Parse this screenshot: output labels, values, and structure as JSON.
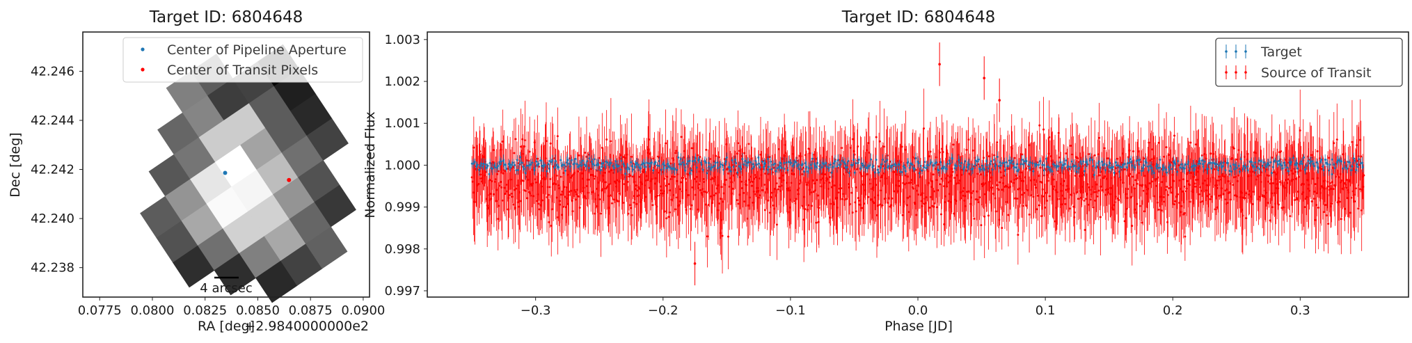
{
  "chart_data": [
    {
      "type": "heatmap",
      "title": "Target ID: 6804648",
      "xlabel": "RA [deg]",
      "ylabel": "Dec [deg]",
      "x_offset_text": "+2.9840000000e2",
      "xlim": [
        0.0767,
        0.0903
      ],
      "ylim": [
        42.2368,
        42.2476
      ],
      "xticks": [
        "0.0775",
        "0.0800",
        "0.0825",
        "0.0850",
        "0.0875",
        "0.0900"
      ],
      "xtick_values": [
        0.0775,
        0.08,
        0.0825,
        0.085,
        0.0875,
        0.09
      ],
      "yticks": [
        "42.246",
        "42.244",
        "42.242",
        "42.240",
        "42.238"
      ],
      "ytick_values": [
        42.246,
        42.244,
        42.242,
        42.24,
        42.238
      ],
      "colormap": "gray",
      "pixel_grid": {
        "rows": [
          [
            null,
            null,
            null,
            0.5,
            0.36,
            null,
            null
          ],
          [
            null,
            null,
            0.4,
            0.52,
            0.24,
            0.26,
            0.02
          ],
          [
            null,
            0.34,
            0.46,
            0.8,
            0.8,
            0.36,
            0.12
          ],
          [
            0.36,
            0.58,
            0.9,
            1.0,
            0.64,
            0.36,
            0.16
          ],
          [
            0.32,
            0.66,
            0.98,
            0.96,
            0.74,
            0.44,
            0.26
          ],
          [
            0.18,
            0.44,
            0.82,
            0.82,
            0.58,
            0.32,
            null
          ],
          [
            null,
            0.18,
            0.5,
            0.66,
            0.4,
            0.22,
            null
          ],
          [
            null,
            null,
            0.16,
            0.26,
            0.38,
            null,
            null
          ]
        ]
      },
      "series": [
        {
          "name": "Center of Pipeline Aperture",
          "color": "#1f77b4",
          "x": [
            0.08345
          ],
          "y": [
            42.24186
          ]
        },
        {
          "name": "Center of Transit Pixels",
          "color": "#ff0000",
          "x": [
            0.08648
          ],
          "y": [
            42.24157
          ]
        }
      ],
      "scalebar_label": "4 arcsec",
      "legend_position": "top-right"
    },
    {
      "type": "scatter",
      "title": "Target ID: 6804648",
      "xlabel": "Phase [JD]",
      "ylabel": "Normalized Flux",
      "xlim": [
        -0.385,
        0.385
      ],
      "ylim": [
        0.99685,
        1.00318
      ],
      "xticks": [
        "−0.3",
        "−0.2",
        "−0.1",
        "0.0",
        "0.1",
        "0.2",
        "0.3"
      ],
      "xtick_values": [
        -0.3,
        -0.2,
        -0.1,
        0.0,
        0.1,
        0.2,
        0.3
      ],
      "yticks": [
        "1.003",
        "1.002",
        "1.001",
        "1.000",
        "0.999",
        "0.998",
        "0.997"
      ],
      "ytick_values": [
        1.003,
        1.002,
        1.001,
        1.0,
        0.999,
        0.998,
        0.997
      ],
      "series": [
        {
          "name": "Target",
          "color": "#1f77b4",
          "x_range": [
            -0.35,
            0.35
          ],
          "center": 1.0,
          "scatter": 8e-05,
          "error": 0.00012,
          "n_points": 700
        },
        {
          "name": "Source of Transit",
          "color": "#ff0000",
          "x_range": [
            -0.35,
            0.35
          ],
          "center": 0.99963,
          "scatter": 0.00045,
          "error": 0.0008,
          "n_points": 1600,
          "outliers": [
            {
              "x": 0.017,
              "y": 1.00241
            },
            {
              "x": 0.052,
              "y": 1.00208
            },
            {
              "x": 0.064,
              "y": 1.00155
            },
            {
              "x": -0.175,
              "y": 0.99765
            }
          ]
        }
      ],
      "legend_position": "top-right"
    }
  ]
}
